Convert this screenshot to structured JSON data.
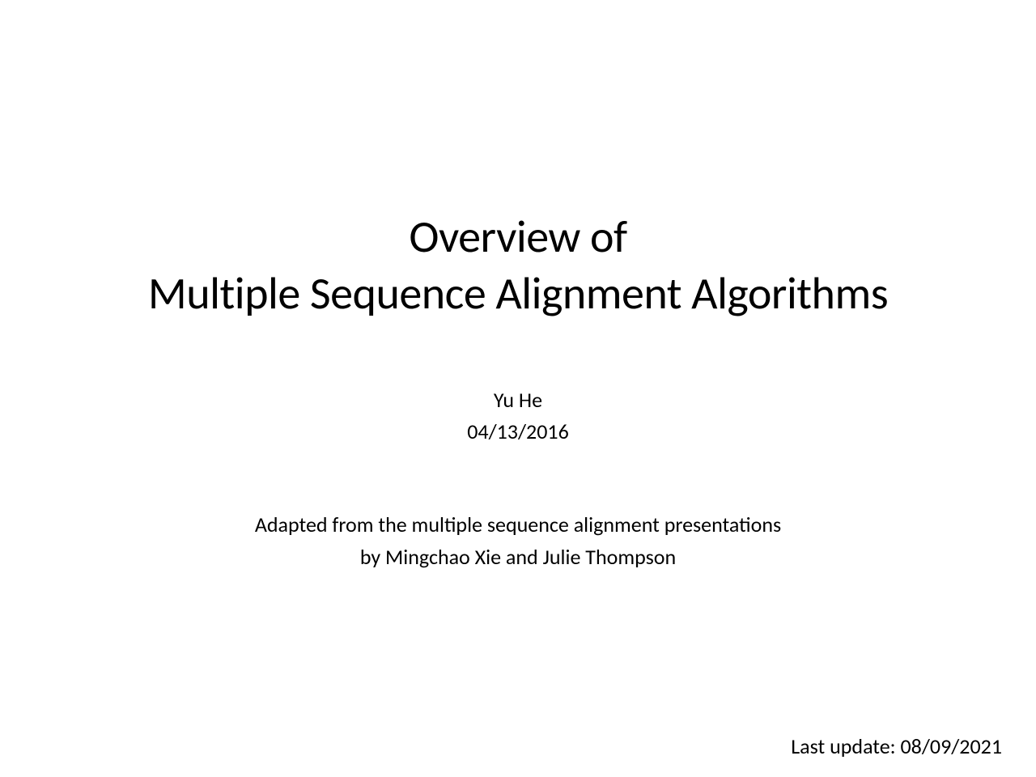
{
  "slide": {
    "title_line1": "Overview of",
    "title_line2": "Multiple Sequence Alignment Algorithms",
    "author": "Yu He",
    "date": "04/13/2016",
    "credit_line1": "Adapted from the multiple sequence alignment presentations",
    "credit_line2": "by Mingchao Xie and Julie Thompson",
    "last_update": "Last update: 08/09/2021"
  },
  "style": {
    "background_color": "#ffffff",
    "text_color": "#000000",
    "title_fontsize": 56,
    "body_fontsize": 26,
    "font_family": "Calibri"
  }
}
